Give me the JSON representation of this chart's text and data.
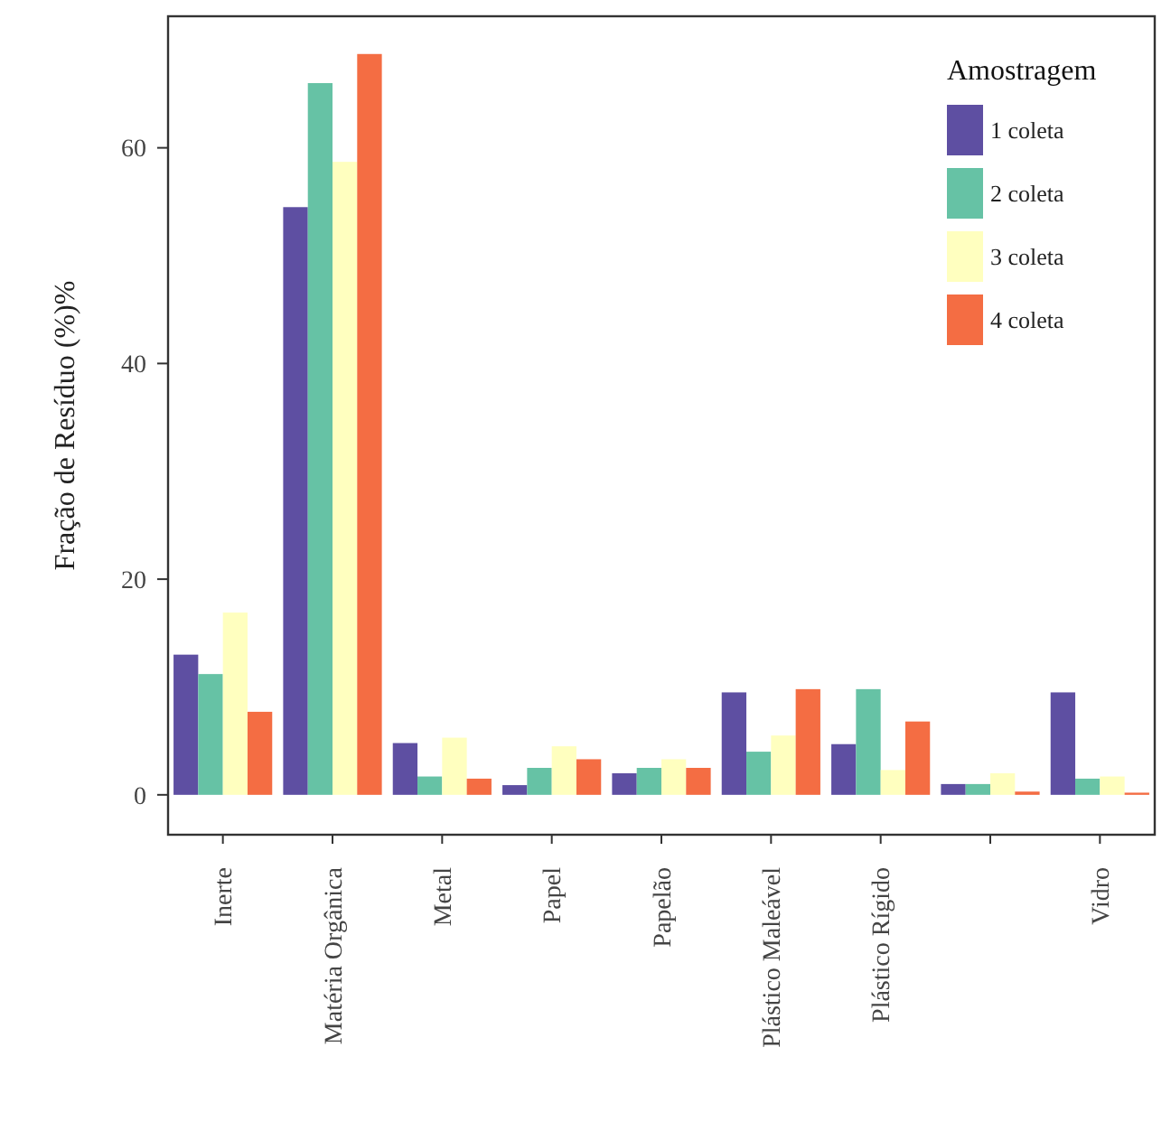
{
  "chart_data": {
    "type": "bar",
    "ylabel": "Fração de Resíduo (%)%",
    "legend_title": "Amostragem",
    "legend": "top right",
    "grid": false,
    "categories": [
      "Inerte",
      "Matéria Orgânica",
      "Metal",
      "Papel",
      "Papelão",
      "Plástico Maleável",
      "Plástico Rígido",
      null,
      "Vidro"
    ],
    "ylim": [
      -3.7,
      72.2
    ],
    "yticks": [
      0,
      20,
      40,
      60
    ],
    "series": [
      {
        "name": "1 coleta",
        "color": "#5e4fa2",
        "values": [
          13,
          54.5,
          4.8,
          0.9,
          2,
          9.5,
          4.7,
          1,
          9.5
        ]
      },
      {
        "name": "2 coleta",
        "color": "#66c2a5",
        "values": [
          11.2,
          66,
          1.7,
          2.5,
          2.5,
          4,
          9.8,
          1,
          1.5
        ]
      },
      {
        "name": "3 coleta",
        "color": "#ffffbf",
        "values": [
          16.9,
          58.7,
          5.3,
          4.5,
          3.3,
          5.5,
          2.3,
          2,
          1.7
        ]
      },
      {
        "name": "4 coleta",
        "color": "#f46d43",
        "values": [
          7.7,
          68.7,
          1.5,
          3.3,
          2.5,
          9.8,
          6.8,
          0.3,
          0.2
        ]
      }
    ]
  }
}
